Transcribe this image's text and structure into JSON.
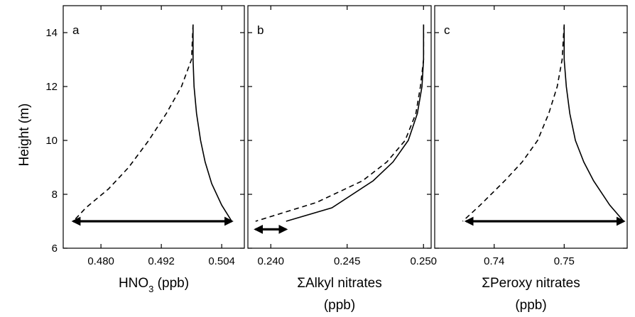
{
  "chart_data": [
    {
      "type": "line",
      "panel_label": "a",
      "xlabel_main": "HNO",
      "xlabel_sub": "3",
      "xlabel_rest": " (ppb)",
      "ylabel": "Height (m)",
      "xlim": [
        0.4725,
        0.5085
      ],
      "ylim": [
        6,
        15
      ],
      "xticks": [
        0.48,
        0.492,
        0.504
      ],
      "xtick_labels": [
        "0.480",
        "0.492",
        "0.504"
      ],
      "yticks": [
        6,
        8,
        10,
        12,
        14
      ],
      "ytick_labels": [
        "6",
        "8",
        "10",
        "12",
        "14"
      ],
      "series": [
        {
          "style": "solid",
          "points": [
            [
              0.4983,
              14.3
            ],
            [
              0.4983,
              13.0
            ],
            [
              0.4985,
              12.0
            ],
            [
              0.499,
              11.0
            ],
            [
              0.4998,
              10.0
            ],
            [
              0.5007,
              9.2
            ],
            [
              0.502,
              8.4
            ],
            [
              0.504,
              7.6
            ],
            [
              0.506,
              7.0
            ]
          ]
        },
        {
          "style": "dashed",
          "points": [
            [
              0.4983,
              14.3
            ],
            [
              0.498,
              13.0
            ],
            [
              0.496,
              12.0
            ],
            [
              0.493,
              11.0
            ],
            [
              0.4895,
              10.0
            ],
            [
              0.4855,
              9.0
            ],
            [
              0.4815,
              8.2
            ],
            [
              0.477,
              7.5
            ],
            [
              0.4745,
              7.0
            ]
          ]
        }
      ],
      "arrow": {
        "y": 7.0,
        "x_from": 0.4745,
        "x_to": 0.506
      }
    },
    {
      "type": "line",
      "panel_label": "b",
      "xlabel_main": "ΣAlkyl nitrates",
      "xlabel_line2": "(ppb)",
      "xlim": [
        0.2385,
        0.2505
      ],
      "ylim": [
        6,
        15
      ],
      "xticks": [
        0.24,
        0.245,
        0.25
      ],
      "xtick_labels": [
        "0.240",
        "0.245",
        "0.250"
      ],
      "yticks": [
        6,
        8,
        10,
        12,
        14
      ],
      "series": [
        {
          "style": "solid",
          "points": [
            [
              0.25,
              14.3
            ],
            [
              0.25,
              13.0
            ],
            [
              0.2499,
              12.0
            ],
            [
              0.2496,
              11.0
            ],
            [
              0.249,
              10.0
            ],
            [
              0.248,
              9.2
            ],
            [
              0.2467,
              8.5
            ],
            [
              0.244,
              7.5
            ],
            [
              0.241,
              7.0
            ]
          ]
        },
        {
          "style": "dashed",
          "points": [
            [
              0.25,
              14.3
            ],
            [
              0.25,
              13.0
            ],
            [
              0.2498,
              12.0
            ],
            [
              0.2495,
              11.0
            ],
            [
              0.2488,
              10.0
            ],
            [
              0.2476,
              9.2
            ],
            [
              0.246,
              8.5
            ],
            [
              0.243,
              7.7
            ],
            [
              0.239,
              7.0
            ]
          ]
        }
      ],
      "arrow": {
        "y": 6.7,
        "x_from": 0.239,
        "x_to": 0.241
      }
    },
    {
      "type": "line",
      "panel_label": "c",
      "xlabel_main": "ΣPeroxy nitrates",
      "xlabel_line2": "(ppb)",
      "xlim": [
        0.7315,
        0.759
      ],
      "ylim": [
        6,
        15
      ],
      "xticks": [
        0.74,
        0.75
      ],
      "xtick_labels": [
        "0.74",
        "0.75"
      ],
      "yticks": [
        6,
        8,
        10,
        12,
        14
      ],
      "series": [
        {
          "style": "solid",
          "points": [
            [
              0.75,
              14.3
            ],
            [
              0.75,
              13.0
            ],
            [
              0.7503,
              12.0
            ],
            [
              0.7508,
              11.0
            ],
            [
              0.7516,
              10.0
            ],
            [
              0.7528,
              9.2
            ],
            [
              0.7542,
              8.5
            ],
            [
              0.7565,
              7.6
            ],
            [
              0.7585,
              7.0
            ]
          ]
        },
        {
          "style": "dashed",
          "points": [
            [
              0.75,
              14.3
            ],
            [
              0.7497,
              13.0
            ],
            [
              0.749,
              12.0
            ],
            [
              0.7478,
              11.0
            ],
            [
              0.7462,
              10.0
            ],
            [
              0.744,
              9.2
            ],
            [
              0.7415,
              8.5
            ],
            [
              0.738,
              7.6
            ],
            [
              0.7355,
              7.0
            ]
          ]
        }
      ],
      "arrow": {
        "y": 7.0,
        "x_from": 0.736,
        "x_to": 0.7585
      }
    }
  ]
}
